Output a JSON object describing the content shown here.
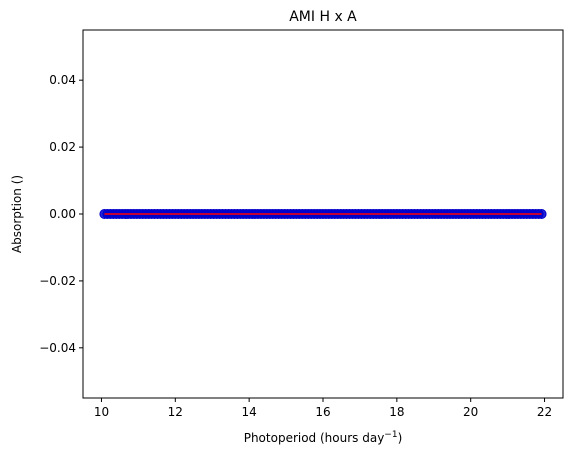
{
  "chart_data": {
    "type": "scatter",
    "title": "AMI H x A",
    "xlabel_main": "Photoperiod (hours day",
    "xlabel_sup": "−1",
    "xlabel_close": ")",
    "ylabel": "Absorption ()",
    "xlim": [
      9.5,
      22.5
    ],
    "ylim": [
      -0.055,
      0.055
    ],
    "xticks": [
      10,
      12,
      14,
      16,
      18,
      20,
      22
    ],
    "yticks": [
      -0.04,
      -0.02,
      0.0,
      0.02,
      0.04
    ],
    "ytick_labels": [
      "−0.04",
      "−0.02",
      "0.00",
      "0.02",
      "0.04"
    ],
    "grid": false,
    "series": [
      {
        "kind": "points",
        "color": "#0000cc",
        "x_start": 10.08,
        "x_end": 21.92,
        "x_step": 0.08,
        "y": 0.0
      },
      {
        "kind": "line",
        "color": "#ff0000",
        "x": [
          10.08,
          21.92
        ],
        "y": [
          0.0,
          0.0
        ]
      }
    ]
  }
}
